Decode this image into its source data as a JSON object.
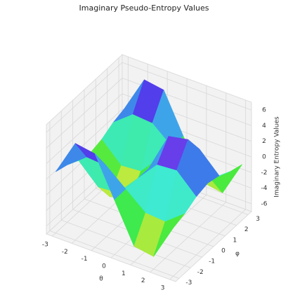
{
  "chart_data": {
    "type": "surface",
    "title": "Imaginary Pseudo-Entropy Values",
    "x_label": "θ",
    "y_label": "φ",
    "z_label": "Imaginary Entropy Values",
    "x": [
      -3,
      -2,
      -1,
      0,
      1,
      2,
      3
    ],
    "y": [
      -3,
      -2,
      -1,
      0,
      1,
      2,
      3
    ],
    "z": [
      [
        0.83,
        0.35,
        -0.45,
        -0.84,
        -0.45,
        0.35,
        0.83
      ],
      [
        5.4,
        2.3,
        -2.9,
        -5.5,
        -2.9,
        2.3,
        5.4
      ],
      [
        5.0,
        2.1,
        -2.7,
        -5.0,
        -2.7,
        2.1,
        5.0
      ],
      [
        0,
        0,
        0,
        0,
        0,
        0,
        0
      ],
      [
        -5.0,
        -2.1,
        2.7,
        5.0,
        2.7,
        -2.1,
        -5.0
      ],
      [
        -5.4,
        -2.3,
        2.9,
        5.5,
        2.9,
        -2.3,
        -5.4
      ],
      [
        -0.83,
        -0.35,
        0.45,
        0.84,
        0.45,
        -0.35,
        -0.83
      ]
    ],
    "xlim": [
      -3.3,
      3.3
    ],
    "ylim": [
      -3.3,
      3.3
    ],
    "zlim": [
      -7,
      7
    ],
    "xticks": [
      -3,
      -2,
      -1,
      0,
      1,
      2,
      3
    ],
    "yticks": [
      -3,
      -2,
      -1,
      0,
      1,
      2,
      3
    ],
    "zticks": [
      -6,
      -4,
      -2,
      0,
      2,
      4,
      6
    ],
    "grid": true
  }
}
